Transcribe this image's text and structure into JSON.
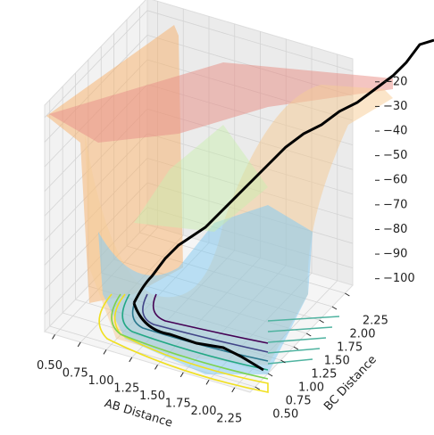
{
  "chart_data": {
    "type": "surface3d",
    "xlabel": "AB Distance",
    "ylabel": "BC Distance",
    "xlim": [
      0.4,
      2.4
    ],
    "ylim": [
      0.4,
      2.4
    ],
    "zlim": [
      -107,
      -15
    ],
    "xticks": [
      {
        "value": 0.5,
        "label": "0.50"
      },
      {
        "value": 0.75,
        "label": "0.75"
      },
      {
        "value": 1,
        "label": "1.00"
      },
      {
        "value": 1.25,
        "label": "1.25"
      },
      {
        "value": 1.5,
        "label": "1.50"
      },
      {
        "value": 1.75,
        "label": "1.75"
      },
      {
        "value": 2,
        "label": "2.00"
      },
      {
        "value": 2.25,
        "label": "2.25"
      }
    ],
    "yticks": [
      {
        "value": 0.5,
        "label": "0.50"
      },
      {
        "value": 0.75,
        "label": "0.75"
      },
      {
        "value": 1,
        "label": "1.00"
      },
      {
        "value": 1.25,
        "label": "1.25"
      },
      {
        "value": 1.5,
        "label": "1.50"
      },
      {
        "value": 1.75,
        "label": "1.75"
      },
      {
        "value": 2,
        "label": "2.00"
      },
      {
        "value": 2.25,
        "label": "2.25"
      }
    ],
    "zticks": [
      {
        "value": -100,
        "label": "−100"
      },
      {
        "value": -90,
        "label": "−90"
      },
      {
        "value": -80,
        "label": "−80"
      },
      {
        "value": -70,
        "label": "−70"
      },
      {
        "value": -60,
        "label": "−60"
      },
      {
        "value": -50,
        "label": "−50"
      },
      {
        "value": -40,
        "label": "−40"
      },
      {
        "value": -30,
        "label": "−30"
      },
      {
        "value": -20,
        "label": "−20"
      }
    ],
    "grid": true
  }
}
